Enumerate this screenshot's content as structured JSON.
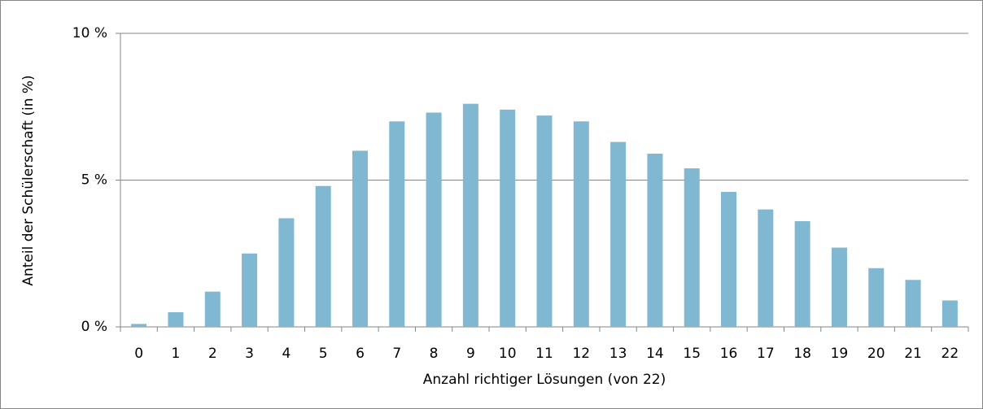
{
  "chart_data": {
    "type": "bar",
    "x_label": "Anzahl richtiger Lösungen (von 22)",
    "y_label": "Anteil der Schülerschaft (in %)",
    "categories": [
      "0",
      "1",
      "2",
      "3",
      "4",
      "5",
      "6",
      "7",
      "8",
      "9",
      "10",
      "11",
      "12",
      "13",
      "14",
      "15",
      "16",
      "17",
      "18",
      "19",
      "20",
      "21",
      "22"
    ],
    "values": [
      0.1,
      0.5,
      1.2,
      2.5,
      3.7,
      4.8,
      6.0,
      7.0,
      7.3,
      7.6,
      7.4,
      7.2,
      7.0,
      6.3,
      5.9,
      5.4,
      4.6,
      4.0,
      3.6,
      2.7,
      2.0,
      1.6,
      0.9
    ],
    "color": "#7fb8d0",
    "ylim": [
      0,
      10
    ],
    "yticks": [
      {
        "value": 0,
        "label": "0 %"
      },
      {
        "value": 5,
        "label": "5 %"
      },
      {
        "value": 10,
        "label": "10 %"
      }
    ],
    "grid": true
  }
}
